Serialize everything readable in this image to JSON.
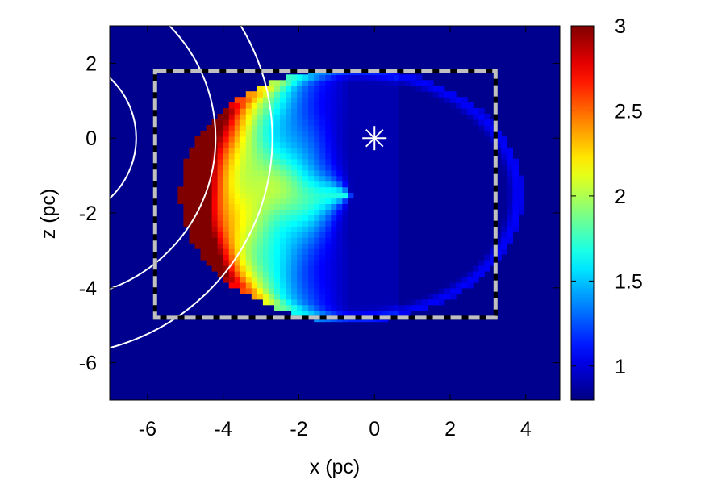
{
  "chart_data": {
    "type": "heatmap",
    "title": "",
    "xlabel": "x (pc)",
    "ylabel": "z (pc)",
    "xlim": [
      -7,
      4.9
    ],
    "ylim": [
      -7,
      3
    ],
    "xticks": [
      -6,
      -4,
      -2,
      0,
      2,
      4
    ],
    "yticks": [
      2,
      0,
      -2,
      -4,
      -6
    ],
    "colorbar": {
      "range": [
        0.8,
        3.0
      ],
      "ticks": [
        3,
        2.5,
        2,
        1.5,
        1
      ],
      "palette": "jet",
      "background_color": "#00008f"
    },
    "overlays": {
      "star_marker": {
        "label": "source",
        "x": 0,
        "z": 0,
        "color": "#ffffff"
      },
      "dashed_box": {
        "x_range": [
          -5.8,
          3.2
        ],
        "z_range": [
          -4.8,
          1.8
        ],
        "color": "#c0c0c0"
      },
      "circles": [
        {
          "center_x": -8.5,
          "center_z": 0,
          "radius": 2.2
        },
        {
          "center_x": -8.5,
          "center_z": 0,
          "radius": 4.3
        },
        {
          "center_x": -8.5,
          "center_z": 0,
          "radius": 5.8
        }
      ]
    },
    "shell": {
      "center_x": -0.6,
      "center_z": -1.5,
      "radius_x": 4.4,
      "radius_z": 3.3,
      "peak_value": 3.0,
      "interior_value": 0.9
    }
  }
}
